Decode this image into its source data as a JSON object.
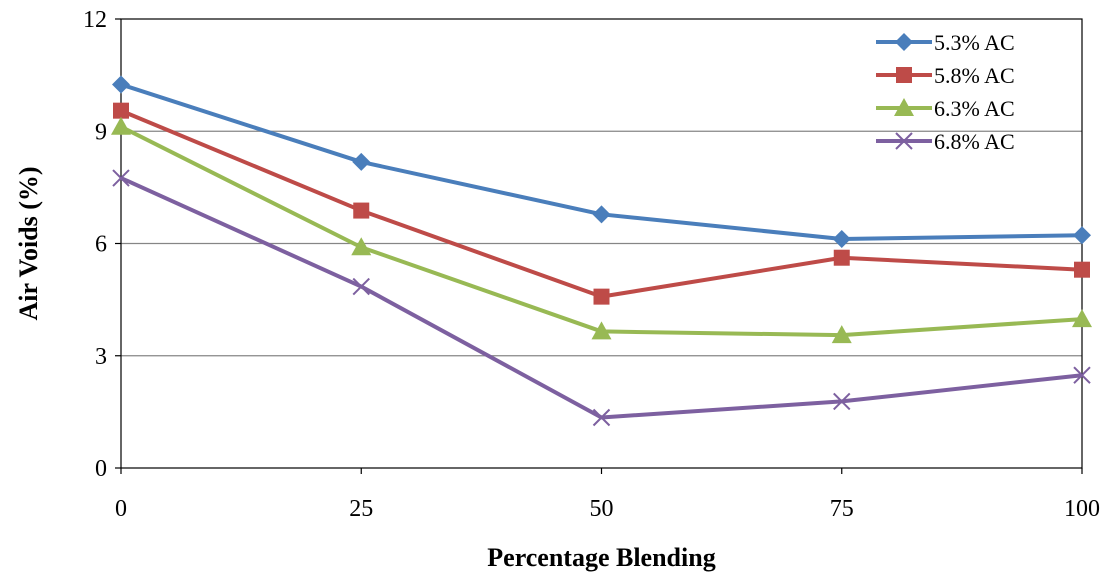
{
  "chart_data": {
    "type": "line",
    "title": "",
    "xlabel": "Percentage Blending",
    "ylabel": "Air Voids (%)",
    "x": [
      0,
      25,
      50,
      75,
      100
    ],
    "x_tick_labels": [
      "0",
      "25",
      "50",
      "75",
      "100"
    ],
    "y_tick_labels": [
      "0",
      "3",
      "6",
      "9",
      "12"
    ],
    "xlim": [
      0,
      100
    ],
    "ylim": [
      0,
      12
    ],
    "y_ticks": [
      0,
      3,
      6,
      9,
      12
    ],
    "grid": "horizontal major gridlines",
    "legend_position": "top-right",
    "series": [
      {
        "name": "5.3% AC",
        "values": [
          10.25,
          8.18,
          6.78,
          6.12,
          6.22
        ],
        "color": "#4a7ebb",
        "marker": "diamond"
      },
      {
        "name": "5.8% AC",
        "values": [
          9.55,
          6.88,
          4.58,
          5.62,
          5.3
        ],
        "color": "#be4b48",
        "marker": "square"
      },
      {
        "name": "6.3% AC",
        "values": [
          9.12,
          5.9,
          3.65,
          3.55,
          3.98
        ],
        "color": "#98b954",
        "marker": "triangle"
      },
      {
        "name": "6.8% AC",
        "values": [
          7.75,
          4.85,
          1.35,
          1.78,
          2.48
        ],
        "color": "#7d60a0",
        "marker": "x"
      }
    ]
  }
}
